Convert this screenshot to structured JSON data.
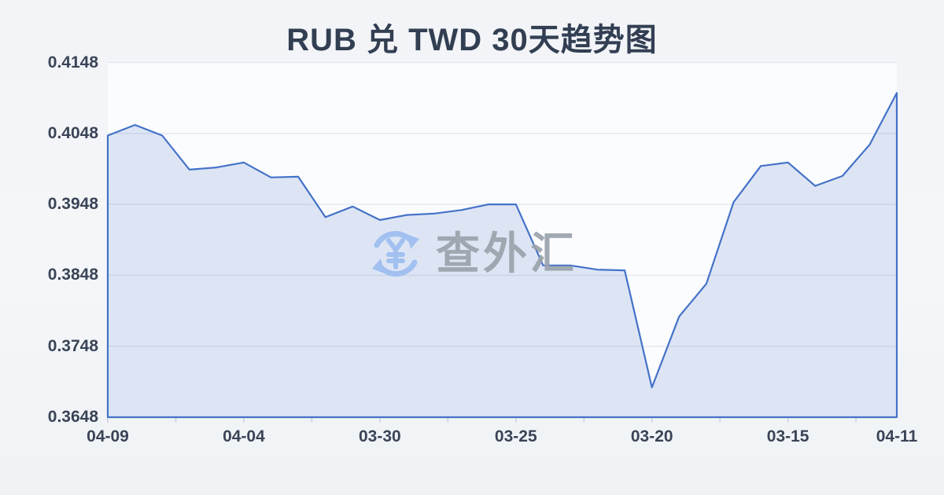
{
  "page": {
    "title": "RUB 兑 TWD 30天趋势图"
  },
  "watermark": {
    "icon": "yuan-refresh-icon",
    "text": "查外汇"
  },
  "colors": {
    "background": "#f2f4f7",
    "plot_background": "#fbfcfe",
    "line": "#4472c8",
    "area_fill": "#d9e1f4",
    "grid": "#e2e7ef",
    "axis_text": "#3a4457",
    "title_text": "#323e52",
    "watermark_blue": "#9dbdf0",
    "watermark_gray": "#9aa2ac"
  },
  "chart_data": {
    "type": "area",
    "title": "RUB 兑 TWD 30天趋势图",
    "series_name": "RUB/TWD",
    "xlabel": "",
    "ylabel": "",
    "grid": true,
    "legend": false,
    "ylim": [
      0.3648,
      0.4148
    ],
    "y_ticks": [
      "0.4148",
      "0.4048",
      "0.3948",
      "0.3848",
      "0.3748",
      "0.3648"
    ],
    "x_ticks": [
      {
        "index": 0,
        "label": "04-09"
      },
      {
        "index": 5,
        "label": "04-04"
      },
      {
        "index": 10,
        "label": "03-30"
      },
      {
        "index": 15,
        "label": "03-25"
      },
      {
        "index": 20,
        "label": "03-20"
      },
      {
        "index": 25,
        "label": "03-15"
      },
      {
        "index": 29,
        "label": "04-11"
      }
    ],
    "values": [
      0.4045,
      0.406,
      0.4045,
      0.3997,
      0.4,
      0.4007,
      0.3986,
      0.3987,
      0.393,
      0.3945,
      0.3926,
      0.3933,
      0.3935,
      0.394,
      0.3948,
      0.3948,
      0.3862,
      0.3862,
      0.3856,
      0.3855,
      0.369,
      0.379,
      0.3836,
      0.3951,
      0.4002,
      0.4007,
      0.3974,
      0.3988,
      0.4032,
      0.4105
    ],
    "line_color": "#4472c8",
    "fill_color": "#4472c8",
    "fill_opacity": 0.16
  }
}
